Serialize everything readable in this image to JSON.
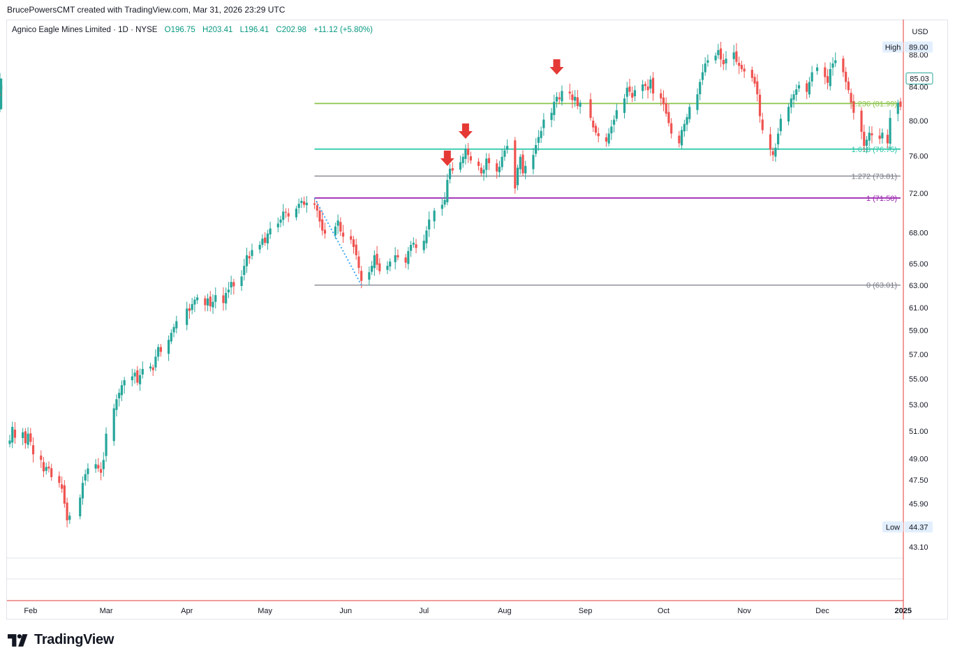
{
  "credit": "BrucePowersCMT created with TradingView.com, Mar 31, 2026 23:29 UTC",
  "brand": {
    "name": "TradingView",
    "logo_icon": "tradingview-logo-icon"
  },
  "colors": {
    "up": "#26a69a",
    "down": "#ef5350",
    "fib_green": "#8bc34a",
    "fib_teal": "#26c6a6",
    "fib_gray": "#787b86",
    "fib_purple": "#9c27b0",
    "arrow": "#e53935",
    "trend": "#3fa9f5",
    "crosshair": "#e53935"
  },
  "chart_data": {
    "type": "candlestick",
    "symbol": "Agnico Eagle Mines Limited",
    "interval": "1D",
    "exchange": "NYSE",
    "legend": {
      "open": "O196.75",
      "high": "H203.41",
      "low": "L196.41",
      "close": "C202.98",
      "change": "+11.12 (+5.80%)"
    },
    "currency": "USD",
    "y_scale": "log",
    "ylim": [
      42.5,
      91.5
    ],
    "y_ticks": [
      "89.00",
      "88.00",
      "84.00",
      "80.00",
      "76.00",
      "72.00",
      "68.00",
      "65.00",
      "63.00",
      "61.00",
      "59.00",
      "57.00",
      "55.00",
      "53.00",
      "51.00",
      "49.00",
      "47.50",
      "45.90",
      "43.10"
    ],
    "x_ticks": [
      "Feb",
      "Mar",
      "Apr",
      "May",
      "Jun",
      "Jul",
      "Aug",
      "Sep",
      "Oct",
      "Nov",
      "Dec",
      "2025"
    ],
    "x_range": [
      "2024-01-24",
      "2024-12-31"
    ],
    "high_label": "High",
    "high_value": "89.00",
    "low_label": "Low",
    "low_value": "44.37",
    "last_price": "85.03",
    "fib_extension": {
      "levels": [
        {
          "ratio": "0",
          "price": 63.01,
          "label": "0 (63.01)",
          "color": "#787b86"
        },
        {
          "ratio": "1",
          "price": 71.5,
          "label": "1 (71.50)",
          "color": "#9c27b0"
        },
        {
          "ratio": "1.272",
          "price": 73.81,
          "label": "1.272 (73.81)",
          "color": "#787b86"
        },
        {
          "ratio": "1.618",
          "price": 76.75,
          "label": "1.618 (76.75)",
          "color": "#26c6a6"
        },
        {
          "ratio": "2.236",
          "price": 82.0,
          "label": "2.236 (81.99)",
          "color": "#8bc34a"
        }
      ],
      "start_date": "2024-05-20"
    },
    "trend_line": [
      {
        "date": "2024-05-20",
        "price": 71.5
      },
      {
        "date": "2024-06-07",
        "price": 63.01
      }
    ],
    "arrows": [
      {
        "date": "2024-07-10",
        "price": 74.9
      },
      {
        "date": "2024-07-17",
        "price": 77.9
      },
      {
        "date": "2024-08-21",
        "price": 85.5
      }
    ],
    "series": [
      {
        "dates": [
          "2024-01-24",
          "2024-01-25",
          "2024-01-26",
          "2024-01-29",
          "2024-01-30",
          "2024-01-31",
          "2024-02-01",
          "2024-02-02",
          "2024-02-05",
          "2024-02-06",
          "2024-02-07",
          "2024-02-08",
          "2024-02-09",
          "2024-02-12",
          "2024-02-13",
          "2024-02-14",
          "2024-02-15",
          "2024-02-16",
          "2024-02-20",
          "2024-02-21",
          "2024-02-22",
          "2024-02-23",
          "2024-02-26",
          "2024-02-27",
          "2024-02-28",
          "2024-02-29",
          "2024-03-01",
          "2024-03-04",
          "2024-03-05",
          "2024-03-06",
          "2024-03-07",
          "2024-03-08",
          "2024-03-11",
          "2024-03-12",
          "2024-03-13",
          "2024-03-14",
          "2024-03-15",
          "2024-03-18",
          "2024-03-19",
          "2024-03-20",
          "2024-03-21",
          "2024-03-22",
          "2024-03-25",
          "2024-03-26",
          "2024-03-27",
          "2024-03-28",
          "2024-04-01",
          "2024-04-02",
          "2024-04-03",
          "2024-04-04",
          "2024-04-05",
          "2024-04-08",
          "2024-04-09",
          "2024-04-10",
          "2024-04-11",
          "2024-04-12",
          "2024-04-15",
          "2024-04-16",
          "2024-04-17",
          "2024-04-18",
          "2024-04-19",
          "2024-04-22",
          "2024-04-23",
          "2024-04-24",
          "2024-04-25",
          "2024-04-26",
          "2024-04-29",
          "2024-04-30",
          "2024-05-01",
          "2024-05-02",
          "2024-05-03",
          "2024-05-06",
          "2024-05-07",
          "2024-05-08",
          "2024-05-09",
          "2024-05-10",
          "2024-05-13",
          "2024-05-14",
          "2024-05-15",
          "2024-05-16",
          "2024-05-17",
          "2024-05-20",
          "2024-05-21",
          "2024-05-22",
          "2024-05-23",
          "2024-05-24",
          "2024-05-28",
          "2024-05-29",
          "2024-05-30",
          "2024-05-31",
          "2024-06-03",
          "2024-06-04",
          "2024-06-05",
          "2024-06-06",
          "2024-06-07",
          "2024-06-10",
          "2024-06-11",
          "2024-06-12",
          "2024-06-13",
          "2024-06-14",
          "2024-06-17",
          "2024-06-18",
          "2024-06-20",
          "2024-06-21",
          "2024-06-24",
          "2024-06-25",
          "2024-06-26",
          "2024-06-27",
          "2024-06-28",
          "2024-07-01",
          "2024-07-02",
          "2024-07-03",
          "2024-07-05",
          "2024-07-08",
          "2024-07-09",
          "2024-07-10",
          "2024-07-11",
          "2024-07-12",
          "2024-07-15",
          "2024-07-16",
          "2024-07-17",
          "2024-07-18",
          "2024-07-19",
          "2024-07-22",
          "2024-07-23",
          "2024-07-24",
          "2024-07-25",
          "2024-07-26",
          "2024-07-29",
          "2024-07-30",
          "2024-07-31",
          "2024-08-01",
          "2024-08-02",
          "2024-08-05",
          "2024-08-06",
          "2024-08-07",
          "2024-08-08",
          "2024-08-09",
          "2024-08-12",
          "2024-08-13",
          "2024-08-14",
          "2024-08-15",
          "2024-08-16",
          "2024-08-19",
          "2024-08-20",
          "2024-08-21",
          "2024-08-22",
          "2024-08-23",
          "2024-08-26",
          "2024-08-27",
          "2024-08-28",
          "2024-08-29",
          "2024-08-30",
          "2024-09-03",
          "2024-09-04",
          "2024-09-05",
          "2024-09-06",
          "2024-09-09",
          "2024-09-10",
          "2024-09-11",
          "2024-09-12",
          "2024-09-13",
          "2024-09-16",
          "2024-09-17",
          "2024-09-18",
          "2024-09-19",
          "2024-09-20",
          "2024-09-23",
          "2024-09-24",
          "2024-09-25",
          "2024-09-26",
          "2024-09-27",
          "2024-09-30",
          "2024-10-01",
          "2024-10-02",
          "2024-10-03",
          "2024-10-04",
          "2024-10-07",
          "2024-10-08",
          "2024-10-09",
          "2024-10-10",
          "2024-10-11",
          "2024-10-14",
          "2024-10-15",
          "2024-10-16",
          "2024-10-17",
          "2024-10-18",
          "2024-10-21",
          "2024-10-22",
          "2024-10-23",
          "2024-10-24",
          "2024-10-25",
          "2024-10-28",
          "2024-10-29",
          "2024-10-30",
          "2024-10-31",
          "2024-11-01",
          "2024-11-04",
          "2024-11-05",
          "2024-11-06",
          "2024-11-07",
          "2024-11-08",
          "2024-11-11",
          "2024-11-12",
          "2024-11-13",
          "2024-11-14",
          "2024-11-15",
          "2024-11-18",
          "2024-11-19",
          "2024-11-20",
          "2024-11-21",
          "2024-11-22",
          "2024-11-25",
          "2024-11-26",
          "2024-11-27",
          "2024-11-29",
          "2024-12-02",
          "2024-12-03",
          "2024-12-04",
          "2024-12-05",
          "2024-12-06",
          "2024-12-09",
          "2024-12-10",
          "2024-12-11",
          "2024-12-12",
          "2024-12-13",
          "2024-12-16",
          "2024-12-17",
          "2024-12-18",
          "2024-12-19",
          "2024-12-20",
          "2024-12-23",
          "2024-12-24",
          "2024-12-26",
          "2024-12-27",
          "2024-12-30",
          "2024-12-31"
        ],
        "closes": [
          50.3,
          51.3,
          50.5,
          50.9,
          50.1,
          50.8,
          50.2,
          49.3,
          48.9,
          48.1,
          48.4,
          48.3,
          47.7,
          47.3,
          46.9,
          45.9,
          44.8,
          45.1,
          46.3,
          47.3,
          47.9,
          48.3,
          48.6,
          48.3,
          48.0,
          48.9,
          50.8,
          52.7,
          53.4,
          53.9,
          54.5,
          54.9,
          55.2,
          55.5,
          54.7,
          55.3,
          55.8,
          56.0,
          55.7,
          56.8,
          57.6,
          57.2,
          58.2,
          58.8,
          59.3,
          59.8,
          60.9,
          60.7,
          61.3,
          61.7,
          61.9,
          61.2,
          61.8,
          61.1,
          61.5,
          62.1,
          61.4,
          62.3,
          62.6,
          63.3,
          62.9,
          63.8,
          64.8,
          65.8,
          65.5,
          66.3,
          66.8,
          67.4,
          67.0,
          67.9,
          68.4,
          68.9,
          69.3,
          70.1,
          70.0,
          69.6,
          70.4,
          70.9,
          71.2,
          70.8,
          71.0,
          70.8,
          70.2,
          69.1,
          68.2,
          67.9,
          68.6,
          69.2,
          68.1,
          67.6,
          67.3,
          66.6,
          65.8,
          64.6,
          63.4,
          64.2,
          64.8,
          65.8,
          64.9,
          64.3,
          64.8,
          65.2,
          65.8,
          65.6,
          65.1,
          66.2,
          66.8,
          67.0,
          66.5,
          67.2,
          68.2,
          69.3,
          70.2,
          70.8,
          71.3,
          73.4,
          74.6,
          74.4,
          75.3,
          75.9,
          76.8,
          76.1,
          75.5,
          74.9,
          74.1,
          74.5,
          75.7,
          75.2,
          74.3,
          74.8,
          75.9,
          76.6,
          77.1,
          72.5,
          74.7,
          75.9,
          74.1,
          74.9,
          76.1,
          77.2,
          78.1,
          78.8,
          80.1,
          80.9,
          82.2,
          82.8,
          82.5,
          83.5,
          83.2,
          82.4,
          82.8,
          81.7,
          82.1,
          80.3,
          79.2,
          78.6,
          78.2,
          77.6,
          78.5,
          79.3,
          80.1,
          81.2,
          82.6,
          83.9,
          83.4,
          82.7,
          83.6,
          84.3,
          84.1,
          83.6,
          84.9,
          83.2,
          82.6,
          81.9,
          80.8,
          79.7,
          78.5,
          77.4,
          78.9,
          79.6,
          80.4,
          81.6,
          83.1,
          84.6,
          85.8,
          86.9,
          87.3,
          87.9,
          88.6,
          87.4,
          86.8,
          87.5,
          88.3,
          87.1,
          86.6,
          86.2,
          85.9,
          85.1,
          84.4,
          83.1,
          80.5,
          78.9,
          76.7,
          76.1,
          76.9,
          78.5,
          80.2,
          81.6,
          82.6,
          83.1,
          83.7,
          84.2,
          83.4,
          84.6,
          85.8,
          86.4,
          85.2,
          84.5,
          86.2,
          86.9,
          87.3,
          85.8,
          84.6,
          83.6,
          82.1,
          80.9,
          78.7,
          77.1,
          77.8,
          78.6,
          78.3,
          77.9,
          78.6,
          77.4,
          80.3,
          82.1,
          81.6,
          82.6,
          83.6,
          84.2,
          83.6,
          85.0,
          85.03
        ]
      }
    ]
  },
  "panes": {
    "separator_count": 2
  }
}
